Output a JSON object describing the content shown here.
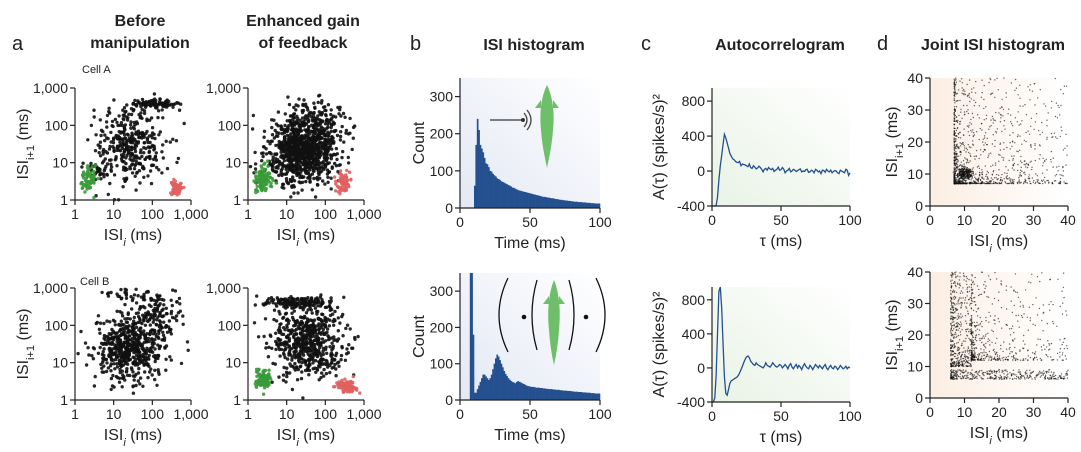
{
  "panel_letters": {
    "a": "a",
    "b": "b",
    "c": "c",
    "d": "d"
  },
  "headers": {
    "before": [
      "Before",
      "manipulation"
    ],
    "enhanced": [
      "Enhanced gain",
      "of feedback"
    ],
    "isi": "ISI histogram",
    "autocorr": "Autocorrelogram",
    "joint": "Joint ISI histogram"
  },
  "cells": [
    "Cell A",
    "Cell B"
  ],
  "colors": {
    "scatter_core": "#111111",
    "burst": "#3a9a3a",
    "slow": "#e06060",
    "histogram": "#24508f",
    "autocorr_line": "#24508f",
    "fish": "#6fbf6a",
    "bg_isi": "#e3e8f4",
    "bg_autocorr": "#e9f3e6",
    "bg_joint": "#fbeee3"
  },
  "icons": [
    "fish-icon",
    "sound-source-icon",
    "electric-field-lines-icon"
  ],
  "chart_data": [
    {
      "id": "a-cellA-before",
      "type": "scatter",
      "panel": "a",
      "row": 0,
      "col": 0,
      "cell": "Cell A",
      "xlabel": "ISI_i (ms)",
      "ylabel": "ISI_i+1 (ms)",
      "xscale": "log",
      "yscale": "log",
      "xlim": [
        1,
        1000
      ],
      "ylim": [
        1,
        1000
      ],
      "xticks": [
        "1",
        "10",
        "100",
        "1,000"
      ],
      "yticks": [
        "1",
        "10",
        "100",
        "1,000"
      ],
      "clusters": [
        {
          "color": "core",
          "n": 320,
          "center": [
            25,
            25
          ],
          "spread": [
            0.45,
            0.45
          ]
        },
        {
          "color": "core",
          "n": 80,
          "center": [
            110,
            380
          ],
          "spread": [
            0.3,
            0.05
          ]
        },
        {
          "color": "core",
          "n": 40,
          "center": [
            40,
            250
          ],
          "spread": [
            0.5,
            0.2
          ]
        },
        {
          "color": "core",
          "n": 25,
          "center": [
            5,
            6
          ],
          "spread": [
            0.15,
            0.15
          ]
        },
        {
          "color": "burst",
          "n": 70,
          "center": [
            2.2,
            3.5
          ],
          "spread": [
            0.1,
            0.15
          ]
        },
        {
          "color": "slow",
          "n": 80,
          "center": [
            420,
            2.2
          ],
          "spread": [
            0.06,
            0.1
          ]
        }
      ]
    },
    {
      "id": "a-cellA-enhanced",
      "type": "scatter",
      "panel": "a",
      "row": 0,
      "col": 1,
      "cell": "Cell A",
      "xlabel": "ISI_i (ms)",
      "ylabel": "",
      "xscale": "log",
      "yscale": "log",
      "xlim": [
        1,
        1000
      ],
      "ylim": [
        1,
        1000
      ],
      "xticks": [
        "1",
        "10",
        "100",
        "1,000"
      ],
      "yticks": [
        "1",
        "10",
        "100",
        "1,000"
      ],
      "clusters": [
        {
          "color": "core",
          "n": 900,
          "center": [
            25,
            20
          ],
          "spread": [
            0.45,
            0.42
          ]
        },
        {
          "color": "core",
          "n": 150,
          "center": [
            60,
            120
          ],
          "spread": [
            0.4,
            0.3
          ]
        },
        {
          "color": "burst",
          "n": 100,
          "center": [
            2.4,
            3.5
          ],
          "spread": [
            0.1,
            0.15
          ]
        },
        {
          "color": "slow",
          "n": 60,
          "center": [
            300,
            3
          ],
          "spread": [
            0.1,
            0.12
          ]
        }
      ]
    },
    {
      "id": "a-cellB-before",
      "type": "scatter",
      "panel": "a",
      "row": 1,
      "col": 0,
      "cell": "Cell B",
      "xlabel": "ISI_i (ms)",
      "ylabel": "ISI_i+1 (ms)",
      "xscale": "log",
      "yscale": "log",
      "xlim": [
        1,
        1000
      ],
      "ylim": [
        1,
        1000
      ],
      "xticks": [
        "1",
        "10",
        "100",
        "1,000"
      ],
      "yticks": [
        "1",
        "10",
        "100",
        "1,000"
      ],
      "clusters": [
        {
          "color": "core",
          "n": 550,
          "center": [
            25,
            25
          ],
          "spread": [
            0.45,
            0.42
          ]
        },
        {
          "color": "core",
          "n": 140,
          "center": [
            140,
            200
          ],
          "spread": [
            0.35,
            0.4
          ]
        },
        {
          "color": "core",
          "n": 30,
          "center": [
            25,
            600
          ],
          "spread": [
            0.4,
            0.08
          ]
        }
      ]
    },
    {
      "id": "a-cellB-enhanced",
      "type": "scatter",
      "panel": "a",
      "row": 1,
      "col": 1,
      "cell": "Cell B",
      "xlabel": "ISI_i (ms)",
      "ylabel": "",
      "xscale": "log",
      "yscale": "log",
      "xlim": [
        1,
        1000
      ],
      "ylim": [
        1,
        1000
      ],
      "xticks": [
        "1",
        "10",
        "100",
        "1,000"
      ],
      "yticks": [
        "1",
        "10",
        "100",
        "1,000"
      ],
      "clusters": [
        {
          "color": "core",
          "n": 560,
          "center": [
            35,
            35
          ],
          "spread": [
            0.45,
            0.45
          ]
        },
        {
          "color": "core",
          "n": 160,
          "center": [
            20,
            400
          ],
          "spread": [
            0.45,
            0.08
          ]
        },
        {
          "color": "burst",
          "n": 100,
          "center": [
            2.4,
            3.5
          ],
          "spread": [
            0.1,
            0.13
          ]
        },
        {
          "color": "slow",
          "n": 90,
          "center": [
            340,
            2.4
          ],
          "spread": [
            0.12,
            0.08
          ]
        }
      ]
    },
    {
      "id": "b-cellA",
      "type": "bar",
      "panel": "b",
      "row": 0,
      "xlabel": "Time (ms)",
      "ylabel": "Count",
      "xlim": [
        0,
        100
      ],
      "ylim": [
        0,
        350
      ],
      "xticks": [
        0,
        50,
        100
      ],
      "yticks": [
        0,
        100,
        200,
        300
      ],
      "bin_ms": 1,
      "onset_ms": 10,
      "values": [
        0,
        0,
        0,
        0,
        0,
        0,
        0,
        0,
        0,
        0,
        60,
        170,
        240,
        210,
        170,
        160,
        150,
        135,
        120,
        118,
        110,
        100,
        98,
        92,
        88,
        85,
        80,
        78,
        75,
        72,
        70,
        68,
        66,
        64,
        62,
        60,
        58,
        55,
        54,
        52,
        50,
        48,
        47,
        46,
        45,
        44,
        43,
        42,
        41,
        40,
        39,
        38,
        37,
        36,
        35,
        34,
        33,
        32,
        31,
        30,
        30,
        29,
        28,
        28,
        27,
        26,
        26,
        25,
        24,
        24,
        23,
        22,
        22,
        21,
        21,
        20,
        20,
        19,
        19,
        18,
        18,
        17,
        17,
        17,
        16,
        16,
        16,
        15,
        15,
        15,
        14,
        14,
        14,
        13,
        13,
        13,
        12,
        12,
        12,
        12
      ]
    },
    {
      "id": "b-cellB",
      "type": "bar",
      "panel": "b",
      "row": 1,
      "xlabel": "Time (ms)",
      "ylabel": "Count",
      "xlim": [
        0,
        100
      ],
      "ylim": [
        0,
        350
      ],
      "xticks": [
        0,
        50,
        100
      ],
      "yticks": [
        0,
        100,
        200,
        300
      ],
      "bin_ms": 1,
      "values": [
        0,
        0,
        0,
        0,
        0,
        0,
        0,
        500,
        500,
        180,
        20,
        20,
        30,
        40,
        50,
        60,
        70,
        70,
        65,
        60,
        55,
        60,
        70,
        85,
        100,
        115,
        125,
        120,
        110,
        100,
        90,
        80,
        72,
        66,
        60,
        56,
        52,
        50,
        48,
        46,
        50,
        52,
        50,
        48,
        46,
        44,
        42,
        40,
        38,
        38,
        36,
        36,
        36,
        35,
        34,
        34,
        34,
        33,
        33,
        32,
        32,
        31,
        31,
        30,
        30,
        30,
        29,
        29,
        28,
        28,
        28,
        27,
        27,
        26,
        26,
        26,
        25,
        25,
        25,
        24,
        24,
        23,
        23,
        23,
        22,
        22,
        22,
        21,
        21,
        21,
        20,
        20,
        20,
        19,
        19,
        19,
        18,
        18,
        18,
        18
      ]
    },
    {
      "id": "c-cellA",
      "type": "line",
      "panel": "c",
      "row": 0,
      "xlabel": "τ (ms)",
      "ylabel": "A(τ) (spikes/s)²",
      "xlim": [
        0,
        100
      ],
      "ylim": [
        -400,
        950
      ],
      "xticks": [
        0,
        50,
        100
      ],
      "yticks": [
        -400,
        0,
        400,
        800
      ],
      "x": [
        0,
        1,
        2,
        3,
        4,
        5,
        6,
        7,
        8,
        9,
        10,
        11,
        12,
        13,
        14,
        15,
        16,
        17,
        18,
        19,
        20,
        21,
        22,
        23,
        24,
        25,
        26,
        27,
        28,
        29,
        30,
        31,
        32,
        33,
        34,
        35,
        36,
        37,
        38,
        39,
        40,
        41,
        42,
        43,
        44,
        45,
        46,
        47,
        48,
        49,
        50,
        51,
        52,
        53,
        54,
        55,
        56,
        57,
        58,
        59,
        60,
        61,
        62,
        63,
        64,
        65,
        66,
        67,
        68,
        69,
        70,
        71,
        72,
        73,
        74,
        75,
        76,
        77,
        78,
        79,
        80,
        81,
        82,
        83,
        84,
        85,
        86,
        87,
        88,
        89,
        90,
        91,
        92,
        93,
        94,
        95,
        96,
        97,
        98,
        99,
        100
      ],
      "y": [
        -400,
        -400,
        -400,
        -395,
        -300,
        -100,
        60,
        180,
        300,
        420,
        380,
        320,
        260,
        200,
        170,
        140,
        130,
        110,
        100,
        95,
        110,
        60,
        80,
        75,
        70,
        60,
        50,
        80,
        40,
        30,
        60,
        45,
        25,
        35,
        55,
        40,
        20,
        -10,
        20,
        30,
        10,
        40,
        25,
        15,
        30,
        -5,
        10,
        20,
        45,
        10,
        15,
        40,
        20,
        -20,
        0,
        10,
        30,
        -10,
        0,
        20,
        10,
        -5,
        5,
        15,
        25,
        -10,
        0,
        -5,
        15,
        20,
        -15,
        -10,
        10,
        0,
        -20,
        20,
        10,
        -10,
        0,
        -30,
        10,
        5,
        -15,
        20,
        0,
        -10,
        10,
        -20,
        -5,
        5,
        0,
        -20,
        -30,
        10,
        0,
        -10,
        -20,
        20,
        10,
        -50,
        -20
      ]
    },
    {
      "id": "c-cellB",
      "type": "line",
      "panel": "c",
      "row": 1,
      "xlabel": "τ (ms)",
      "ylabel": "A(τ) (spikes/s)²",
      "xlim": [
        0,
        100
      ],
      "ylim": [
        -400,
        950
      ],
      "xticks": [
        0,
        50,
        100
      ],
      "yticks": [
        -400,
        0,
        400,
        800
      ],
      "x": [
        0,
        1,
        2,
        3,
        4,
        5,
        6,
        7,
        8,
        9,
        10,
        11,
        12,
        13,
        14,
        15,
        16,
        17,
        18,
        19,
        20,
        21,
        22,
        23,
        24,
        25,
        26,
        27,
        28,
        29,
        30,
        31,
        32,
        33,
        34,
        35,
        36,
        37,
        38,
        39,
        40,
        41,
        42,
        43,
        44,
        45,
        46,
        47,
        48,
        49,
        50,
        51,
        52,
        53,
        54,
        55,
        56,
        57,
        58,
        59,
        60,
        61,
        62,
        63,
        64,
        65,
        66,
        67,
        68,
        69,
        70,
        71,
        72,
        73,
        74,
        75,
        76,
        77,
        78,
        79,
        80,
        81,
        82,
        83,
        84,
        85,
        86,
        87,
        88,
        89,
        90,
        91,
        92,
        93,
        94,
        95,
        96,
        97,
        98,
        99,
        100
      ],
      "y": [
        -400,
        -400,
        -350,
        -100,
        400,
        900,
        950,
        700,
        300,
        -100,
        -300,
        -320,
        -250,
        -180,
        -150,
        -140,
        -130,
        -120,
        -110,
        -90,
        -60,
        -20,
        20,
        60,
        100,
        130,
        140,
        120,
        80,
        60,
        40,
        30,
        60,
        40,
        30,
        20,
        10,
        0,
        20,
        60,
        30,
        20,
        10,
        30,
        60,
        40,
        20,
        10,
        20,
        40,
        30,
        0,
        20,
        40,
        20,
        -10,
        30,
        50,
        10,
        -10,
        20,
        40,
        0,
        30,
        10,
        -20,
        20,
        50,
        20,
        0,
        -10,
        30,
        10,
        -20,
        10,
        40,
        20,
        0,
        30,
        10,
        -10,
        20,
        40,
        0,
        -20,
        10,
        30,
        0,
        -10,
        20,
        10,
        -20,
        0,
        30,
        10,
        -10,
        0,
        20,
        -10,
        10,
        0
      ]
    },
    {
      "id": "d-cellA",
      "type": "scatter",
      "panel": "d",
      "row": 0,
      "density": true,
      "xlabel": "ISI_i (ms)",
      "ylabel": "ISI_i+1 (ms)",
      "xlim": [
        0,
        40
      ],
      "ylim": [
        0,
        40
      ],
      "xticks": [
        0,
        10,
        20,
        30,
        40
      ],
      "yticks": [
        0,
        10,
        20,
        30,
        40
      ],
      "clusters": [
        {
          "color": "core",
          "n": 1100,
          "region": [
            7,
            40,
            7,
            40
          ],
          "decay": 10
        },
        {
          "color": "core",
          "n": 250,
          "center": [
            10,
            10
          ],
          "spread": [
            1.2,
            1.0
          ],
          "linear": true
        }
      ]
    },
    {
      "id": "d-cellB",
      "type": "scatter",
      "panel": "d",
      "row": 1,
      "density": true,
      "xlabel": "ISI_i (ms)",
      "ylabel": "ISI_i+1 (ms)",
      "xlim": [
        0,
        40
      ],
      "ylim": [
        0,
        40
      ],
      "xticks": [
        0,
        10,
        20,
        30,
        40
      ],
      "yticks": [
        0,
        10,
        20,
        30,
        40
      ],
      "clusters": [
        {
          "color": "core",
          "n": 450,
          "region": [
            6,
            12,
            10,
            40
          ],
          "decay": 25
        },
        {
          "color": "core",
          "n": 350,
          "region": [
            6,
            40,
            6,
            9
          ],
          "decay": 40
        },
        {
          "color": "core",
          "n": 500,
          "region": [
            12,
            40,
            12,
            40
          ],
          "decay": 12
        }
      ]
    }
  ]
}
